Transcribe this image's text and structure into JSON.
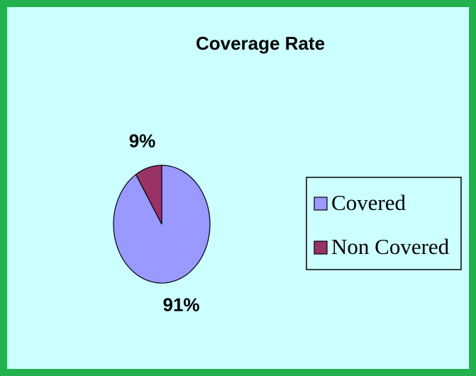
{
  "chart_data": {
    "type": "pie",
    "title": "Coverage Rate",
    "categories": [
      "Covered",
      "Non Covered"
    ],
    "values": [
      91,
      9
    ],
    "value_labels": [
      "91%",
      "9%"
    ],
    "colors": [
      "#9999ff",
      "#993366"
    ],
    "legend": "right"
  }
}
